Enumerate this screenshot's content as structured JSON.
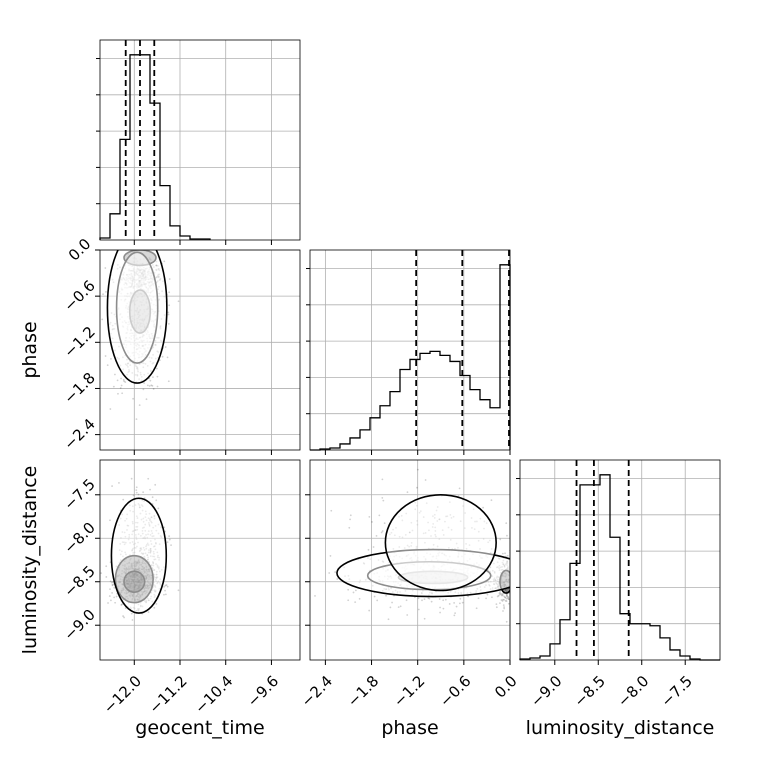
{
  "chart_data": {
    "type": "corner",
    "parameters": [
      "geocent_time",
      "phase",
      "luminosity_distance"
    ],
    "axes": {
      "geocent_time": {
        "range": [
          -12.6,
          -9.1
        ],
        "ticks": [
          -12.0,
          -11.2,
          -10.4,
          -9.6
        ],
        "tick_labels": [
          "−12.0",
          "−11.2",
          "−10.4",
          "−9.6"
        ]
      },
      "phase": {
        "range": [
          -2.6,
          0.0
        ],
        "ticks": [
          -2.4,
          -1.8,
          -1.2,
          -0.6,
          0.0
        ],
        "tick_labels": [
          "−2.4",
          "−1.8",
          "−1.2",
          "−0.6",
          "0.0"
        ]
      },
      "luminosity_distance": {
        "range": [
          -9.4,
          -7.1
        ],
        "ticks": [
          -9.0,
          -8.5,
          -8.0,
          -7.5
        ],
        "tick_labels": [
          "−9.0",
          "−8.5",
          "−8.0",
          "−7.5"
        ]
      }
    },
    "histograms": [
      {
        "parameter": "geocent_time",
        "bin_edges": [
          -12.6,
          -12.425,
          -12.25,
          -12.075,
          -11.9,
          -11.725,
          -11.55,
          -11.375,
          -11.2,
          -11.025,
          -10.85,
          -10.675
        ],
        "counts": [
          0.01,
          0.13,
          0.5,
          0.92,
          0.92,
          0.68,
          0.27,
          0.07,
          0.02,
          0.005,
          0.005
        ],
        "quantiles": [
          -12.15,
          -11.9,
          -11.65
        ]
      },
      {
        "parameter": "phase",
        "bin_edges": [
          -2.6,
          -2.47,
          -2.34,
          -2.21,
          -2.08,
          -1.95,
          -1.82,
          -1.69,
          -1.56,
          -1.43,
          -1.3,
          -1.17,
          -1.04,
          -0.91,
          -0.78,
          -0.65,
          -0.52,
          -0.39,
          -0.26,
          -0.13,
          0.0
        ],
        "counts": [
          0.0,
          0.005,
          0.01,
          0.03,
          0.06,
          0.1,
          0.16,
          0.22,
          0.29,
          0.4,
          0.45,
          0.48,
          0.49,
          0.47,
          0.44,
          0.37,
          0.3,
          0.25,
          0.21,
          0.92
        ],
        "quantiles": [
          -1.22,
          -0.62,
          0.0
        ]
      },
      {
        "parameter": "luminosity_distance",
        "bin_edges": [
          -9.4,
          -9.285,
          -9.17,
          -9.055,
          -8.94,
          -8.825,
          -8.71,
          -8.595,
          -8.48,
          -8.365,
          -8.25,
          -8.135,
          -8.02,
          -7.905,
          -7.79,
          -7.675,
          -7.56,
          -7.445,
          -7.33,
          -7.215,
          -7.1
        ],
        "counts": [
          0.005,
          0.01,
          0.02,
          0.08,
          0.2,
          0.48,
          0.87,
          0.87,
          0.92,
          0.61,
          0.23,
          0.18,
          0.18,
          0.17,
          0.11,
          0.05,
          0.02,
          0.005,
          0.0,
          0.0
        ],
        "quantiles": [
          -8.75,
          -8.55,
          -8.15
        ]
      }
    ],
    "scatter_panels": [
      {
        "x": "geocent_time",
        "y": "phase",
        "cores": [
          {
            "center": [
              -11.88,
              -0.35
            ],
            "sigma": [
              0.18,
              0.1
            ],
            "weight": 0.35
          },
          {
            "center": [
              -11.92,
              -1.0
            ],
            "sigma": [
              0.22,
              0.42
            ],
            "weight": 0.65
          }
        ],
        "contours": [
          {
            "center": [
              -11.9,
              -0.1
            ],
            "radius": [
              0.28,
              0.1
            ]
          },
          {
            "center": [
              -11.9,
              -0.8
            ],
            "radius": [
              0.18,
              0.28
            ]
          },
          {
            "center": [
              -11.95,
              -0.75
            ],
            "radius": [
              0.36,
              0.72
            ]
          },
          {
            "center": [
              -11.95,
              -0.75
            ],
            "radius": [
              0.52,
              0.98
            ]
          }
        ]
      },
      {
        "x": "geocent_time",
        "y": "luminosity_distance",
        "cores": [
          {
            "center": [
              -11.95,
              -8.5
            ],
            "sigma": [
              0.18,
              0.14
            ],
            "weight": 0.75
          },
          {
            "center": [
              -11.85,
              -7.95
            ],
            "sigma": [
              0.22,
              0.3
            ],
            "weight": 0.25
          }
        ],
        "contours": [
          {
            "center": [
              -12.0,
              -8.5
            ],
            "radius": [
              0.18,
              0.12
            ]
          },
          {
            "center": [
              -12.0,
              -8.47
            ],
            "radius": [
              0.33,
              0.27
            ]
          },
          {
            "center": [
              -11.92,
              -8.2
            ],
            "radius": [
              0.48,
              0.66
            ]
          }
        ]
      },
      {
        "x": "phase",
        "y": "luminosity_distance",
        "cores": [
          {
            "center": [
              -1.0,
              -8.45
            ],
            "sigma": [
              0.55,
              0.16
            ],
            "weight": 0.55
          },
          {
            "center": [
              -0.05,
              -8.5
            ],
            "sigma": [
              0.08,
              0.15
            ],
            "weight": 0.25
          },
          {
            "center": [
              -1.0,
              -7.95
            ],
            "sigma": [
              0.45,
              0.3
            ],
            "weight": 0.2
          }
        ],
        "contours": [
          {
            "center": [
              -1.0,
              -8.45
            ],
            "radius": [
              0.45,
              0.07
            ]
          },
          {
            "center": [
              -0.05,
              -8.5
            ],
            "radius": [
              0.08,
              0.13
            ]
          },
          {
            "center": [
              -1.05,
              -8.43
            ],
            "radius": [
              0.8,
              0.16
            ]
          },
          {
            "center": [
              -1.0,
              -8.4
            ],
            "radius": [
              1.25,
              0.27
            ]
          },
          {
            "center": [
              -0.9,
              -8.05
            ],
            "radius": [
              0.72,
              0.55
            ]
          }
        ]
      }
    ],
    "grid": true,
    "line_color": "#000000",
    "point_color": "#000000"
  }
}
